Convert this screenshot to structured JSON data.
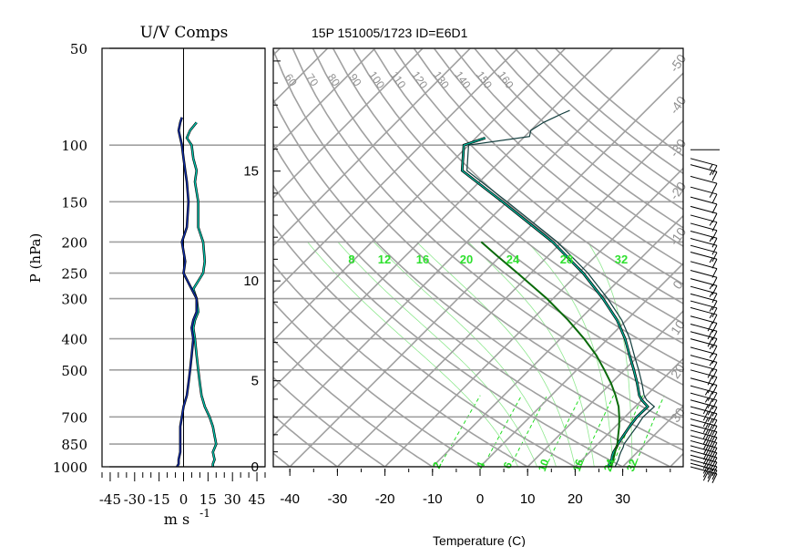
{
  "chart_data": [
    {
      "type": "line",
      "title": "U/V Comps",
      "xlabel_main": "m s",
      "xlabel_exp": "-1",
      "ylabel": "P (hPa)",
      "xlim": [
        -50,
        50
      ],
      "xticks": [
        -45,
        -30,
        -15,
        0,
        15,
        30,
        45
      ],
      "xtick_labels": [
        "-45",
        "-30",
        "-15",
        "0",
        "15",
        "30",
        "45"
      ],
      "pressure_ticks": [
        50,
        100,
        150,
        200,
        250,
        300,
        400,
        500,
        700,
        850,
        1000
      ],
      "pressure_tick_labels": [
        "50",
        "100",
        "150",
        "200",
        "250",
        "300",
        "400",
        "500",
        "700",
        "850",
        "1000"
      ],
      "series": [
        {
          "color": "#00ccb4",
          "pressure": [
            1000,
            980,
            950,
            900,
            850,
            800,
            750,
            700,
            650,
            600,
            550,
            500,
            450,
            400,
            370,
            350,
            330,
            300,
            280,
            250,
            230,
            200,
            180,
            150,
            130,
            120,
            110,
            100,
            95,
            90,
            85
          ],
          "values": [
            18,
            18,
            19,
            18,
            20,
            19,
            18,
            16,
            13,
            11,
            10,
            9,
            8,
            7,
            6,
            7,
            9,
            8,
            6,
            12,
            13,
            12,
            9,
            9,
            7,
            8,
            6,
            5,
            2,
            4,
            8
          ]
        },
        {
          "color": "#0f2fb0",
          "pressure": [
            1000,
            980,
            950,
            900,
            850,
            800,
            750,
            700,
            650,
            600,
            550,
            500,
            450,
            400,
            370,
            350,
            330,
            300,
            280,
            250,
            230,
            200,
            180,
            150,
            130,
            120,
            110,
            100,
            95,
            90,
            85,
            82
          ],
          "values": [
            -4,
            -3,
            -3,
            -2,
            -2,
            -2,
            -2,
            -1,
            0,
            2,
            3,
            4,
            5,
            6,
            5,
            6,
            8,
            8,
            5,
            0,
            1,
            -1,
            2,
            3,
            2,
            1,
            0,
            -1,
            -2,
            -3,
            -2,
            -1
          ]
        }
      ]
    },
    {
      "type": "line",
      "title": "15P 151005/1723 ID=E6D1",
      "xlabel": "Temperature (C)",
      "xticks": [
        -40,
        -30,
        -20,
        -10,
        0,
        10,
        20,
        30
      ],
      "xtick_labels": [
        "-40",
        "-30",
        "-20",
        "-10",
        "0",
        "10",
        "20",
        "30"
      ],
      "height_ticks_km": [
        0,
        5,
        10,
        15
      ],
      "height_tick_labels": [
        "0",
        "5",
        "10",
        "15"
      ],
      "isotherm_labels": [
        "-50",
        "-40",
        "-30",
        "-20",
        "-10",
        "0",
        "10",
        "20",
        "30"
      ],
      "dry_adiabat_labels": [
        "40",
        "50",
        "60",
        "70",
        "80",
        "90",
        "100",
        "110",
        "120",
        "130",
        "140",
        "150",
        "160"
      ],
      "mixing_ratio_labels": [
        "2",
        "4",
        "6",
        "10",
        "16",
        "24",
        "32"
      ],
      "moist_adiabat_labels": [
        "8",
        "12",
        "16",
        "20",
        "24",
        "28",
        "32"
      ],
      "series": [
        {
          "name": "temperature",
          "color": "#123d3d",
          "pressure": [
            1000,
            975,
            950,
            925,
            900,
            870,
            850,
            800,
            750,
            700,
            650,
            620,
            600,
            550,
            500,
            450,
            400,
            350,
            300,
            250,
            200,
            150,
            120,
            100,
            94,
            90,
            85,
            80,
            78
          ],
          "temperature": [
            28.4,
            28.0,
            27.6,
            27.0,
            26.5,
            26.0,
            25.5,
            25.0,
            24.5,
            23.8,
            24.0,
            21.0,
            19.5,
            16.5,
            13.0,
            9.0,
            4.6,
            -1.0,
            -8.5,
            -18.0,
            -31.0,
            -50.0,
            -65.0,
            -70.0,
            -59.0,
            -60.0,
            -59.0,
            -57.0,
            -56.0
          ]
        },
        {
          "name": "dewpoint",
          "color": "#00b89c",
          "pressure": [
            1000,
            975,
            950,
            925,
            900,
            870,
            850,
            800,
            750,
            700,
            650,
            620,
            600,
            550,
            500,
            450,
            400,
            350,
            300,
            250,
            200,
            150,
            120,
            100,
            95
          ],
          "temperature": [
            27.0,
            26.5,
            26.2,
            25.5,
            25.0,
            24.6,
            24.2,
            23.6,
            23.0,
            22.5,
            22.6,
            20.0,
            18.5,
            15.5,
            12.0,
            8.0,
            3.6,
            -2.0,
            -9.5,
            -19.0,
            -32.0,
            -51.0,
            -66.0,
            -71.0,
            -68.0
          ]
        },
        {
          "name": "parcel",
          "color": "#0a6a0a",
          "pressure": [
            1000,
            950,
            900,
            850,
            800,
            750,
            700,
            650,
            600,
            550,
            500,
            450,
            400,
            350,
            300,
            250,
            220,
            200
          ],
          "temperature": [
            27.5,
            26.5,
            25.3,
            24.1,
            22.5,
            20.8,
            18.8,
            16.5,
            13.5,
            10.0,
            5.8,
            1.0,
            -5.0,
            -12.3,
            -21.3,
            -32.8,
            -41.0,
            -47.0
          ]
        }
      ],
      "wind_barbs": {
        "pressure": [
          110,
          115,
          125,
          135,
          145,
          155,
          165,
          175,
          185,
          195,
          205,
          215,
          230,
          245,
          260,
          275,
          290,
          305,
          320,
          340,
          360,
          380,
          400,
          425,
          450,
          475,
          500,
          530,
          560,
          590,
          620,
          650,
          680,
          710,
          740,
          770,
          800,
          830,
          860,
          890,
          920,
          950,
          975,
          1000
        ],
        "speed_kt": [
          15,
          15,
          10,
          15,
          10,
          10,
          15,
          10,
          15,
          10,
          10,
          15,
          10,
          10,
          15,
          15,
          10,
          15,
          15,
          20,
          20,
          20,
          15,
          15,
          15,
          20,
          20,
          20,
          25,
          25,
          30,
          30,
          30,
          30,
          30,
          30,
          30,
          30,
          30,
          30,
          30,
          30,
          30,
          30
        ]
      }
    }
  ]
}
